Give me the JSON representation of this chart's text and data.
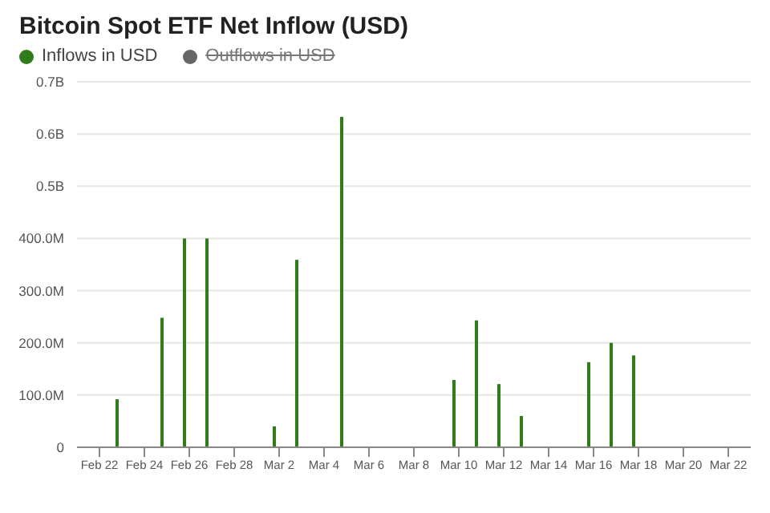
{
  "chart_data": {
    "type": "bar",
    "title": "Bitcoin Spot ETF Net Inflow (USD)",
    "x": [
      "--02-23",
      "--02-25",
      "--02-26",
      "--02-27",
      "--03-02",
      "--03-03",
      "--03-05",
      "--03-10",
      "--03-11",
      "--03-12",
      "--03-13",
      "--03-16",
      "--03-17",
      "--03-18"
    ],
    "series": [
      {
        "name": "Inflows in USD",
        "color": "#2e7d1a",
        "values": [
          92000000,
          248000000,
          400000000,
          400000000,
          40000000,
          359000000,
          633000000,
          129000000,
          243000000,
          121000000,
          60000000,
          163000000,
          200000000,
          176000000
        ]
      },
      {
        "name": "Outflows in USD",
        "color": "#666666",
        "values": [
          null,
          null,
          null,
          null,
          null,
          null,
          null,
          null,
          null,
          null,
          null,
          null,
          null,
          null
        ]
      }
    ],
    "xlim": [
      "--02-21",
      "--03-23"
    ],
    "xticks": [
      {
        "value": "--02-22",
        "label": "Feb 22"
      },
      {
        "value": "--02-24",
        "label": "Feb 24"
      },
      {
        "value": "--02-26",
        "label": "Feb 26"
      },
      {
        "value": "--02-28",
        "label": "Feb 28"
      },
      {
        "value": "--03-02",
        "label": "Mar 2"
      },
      {
        "value": "--03-04",
        "label": "Mar 4"
      },
      {
        "value": "--03-06",
        "label": "Mar 6"
      },
      {
        "value": "--03-08",
        "label": "Mar 8"
      },
      {
        "value": "--03-10",
        "label": "Mar 10"
      },
      {
        "value": "--03-12",
        "label": "Mar 12"
      },
      {
        "value": "--03-14",
        "label": "Mar 14"
      },
      {
        "value": "--03-16",
        "label": "Mar 16"
      },
      {
        "value": "--03-18",
        "label": "Mar 18"
      },
      {
        "value": "--03-20",
        "label": "Mar 20"
      },
      {
        "value": "--03-22",
        "label": "Mar 22"
      }
    ],
    "ylim": [
      0,
      700000000
    ],
    "yticks": [
      0,
      {
        "value": 100000000,
        "label": "100.0M"
      },
      {
        "value": 200000000,
        "label": "200.0M"
      },
      {
        "value": 300000000,
        "label": "300.0M"
      },
      {
        "value": 400000000,
        "label": "400.0M"
      },
      {
        "value": 500000000,
        "label": "0.5B"
      },
      {
        "value": 600000000,
        "label": "0.6B"
      },
      {
        "value": 700000000,
        "label": "0.7B"
      }
    ],
    "grid": "y",
    "legend": "top left"
  }
}
